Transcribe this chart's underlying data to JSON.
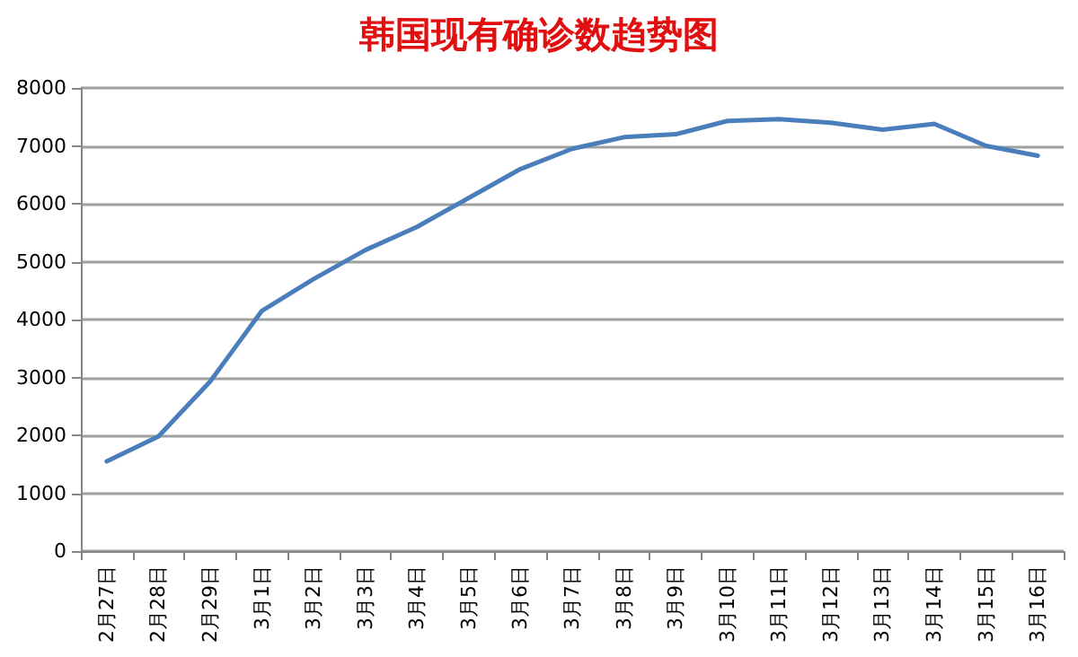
{
  "chart_data": {
    "type": "line",
    "title": "韩国现有确诊数趋势图",
    "categories": [
      "2月27日",
      "2月28日",
      "2月29日",
      "3月1日",
      "3月2日",
      "3月3日",
      "3月4日",
      "3月5日",
      "3月6日",
      "3月7日",
      "3月8日",
      "3月9日",
      "3月10日",
      "3月11日",
      "3月12日",
      "3月13日",
      "3月14日",
      "3月15日",
      "3月16日"
    ],
    "series": [
      {
        "color": "#4a7ebb",
        "values": [
          1550,
          1980,
          2930,
          4150,
          4700,
          5200,
          5600,
          6100,
          6600,
          6950,
          7150,
          7200,
          7430,
          7460,
          7400,
          7280,
          7380,
          7000,
          6830
        ]
      }
    ],
    "ylim": [
      0,
      8000
    ],
    "yticks": [
      0,
      1000,
      2000,
      3000,
      4000,
      5000,
      6000,
      7000,
      8000
    ],
    "grid": "y",
    "marker": "none",
    "line_style": "solid"
  }
}
